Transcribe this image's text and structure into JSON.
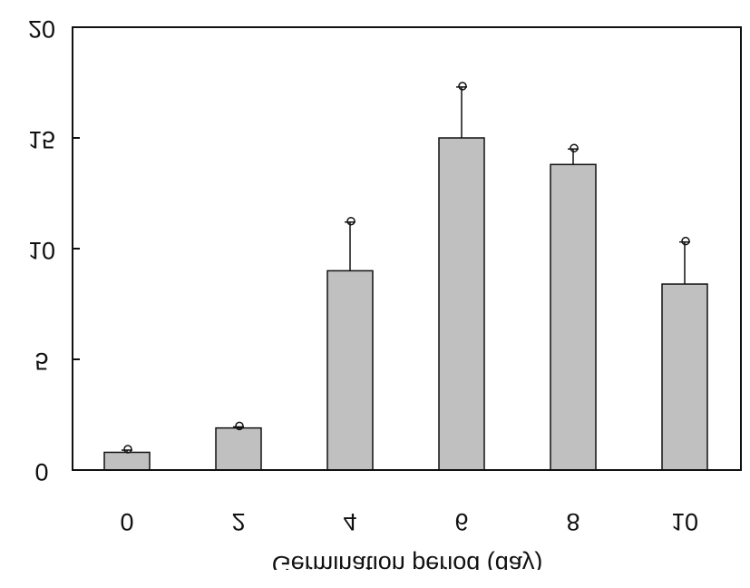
{
  "chart_data": {
    "type": "bar",
    "title": "",
    "xlabel": "Germination period (day)",
    "ylabel": "",
    "categories": [
      "0",
      "2",
      "4",
      "6",
      "8",
      "10"
    ],
    "values": [
      0.8,
      1.9,
      9.0,
      15.0,
      13.8,
      8.4
    ],
    "error_upper": [
      0.9,
      1.95,
      11.2,
      17.3,
      14.5,
      10.3
    ],
    "ylim": [
      0,
      20
    ],
    "yticks": [
      "0",
      "5",
      "10",
      "15",
      "20"
    ],
    "mirrored": true,
    "grid": false,
    "colors": {
      "bar_fill": "#c0c0c0",
      "stroke": "#111111",
      "background": "#ffffff"
    }
  }
}
